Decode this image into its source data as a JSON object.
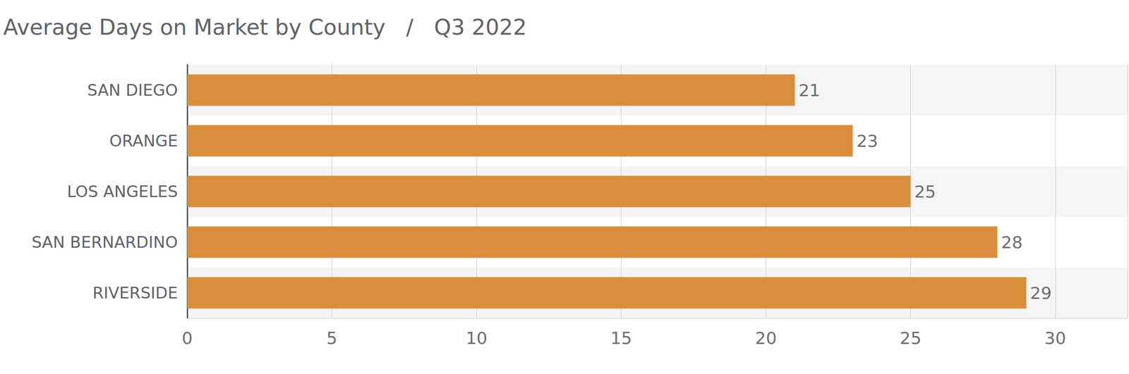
{
  "chart_data": {
    "type": "bar",
    "orientation": "horizontal",
    "title": "Average Days on Market by County   /   Q3 2022",
    "categories": [
      "SAN DIEGO",
      "ORANGE",
      "LOS ANGELES",
      "SAN BERNARDINO",
      "RIVERSIDE"
    ],
    "values": [
      21,
      23,
      25,
      28,
      29
    ],
    "color": "#d98e3b",
    "xlim": [
      0,
      32.5
    ],
    "xticks": [
      0,
      5,
      10,
      15,
      20,
      25,
      30
    ],
    "grid": true,
    "data_labels": true
  }
}
